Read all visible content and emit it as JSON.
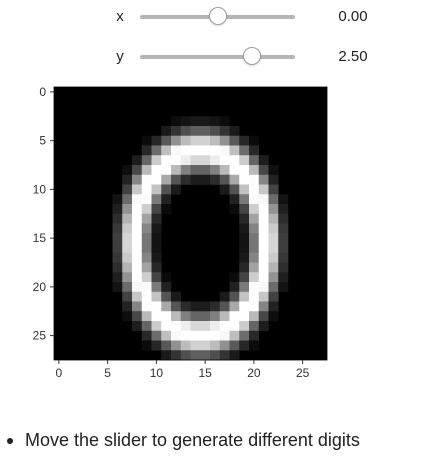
{
  "sliders": [
    {
      "label": "x",
      "value": 0.0,
      "display": "0.00",
      "min": -5,
      "max": 5
    },
    {
      "label": "y",
      "value": 2.5,
      "display": "2.50",
      "min": -5,
      "max": 5
    }
  ],
  "chart_data": {
    "type": "heatmap",
    "colormap": "gray",
    "image_size": [
      28,
      28
    ],
    "title": "",
    "xlabel": "",
    "ylabel": "",
    "xlim": [
      -0.5,
      27.5
    ],
    "ylim": [
      27.5,
      -0.5
    ],
    "x_ticks": [
      0,
      5,
      10,
      15,
      20,
      25
    ],
    "y_ticks": [
      0,
      5,
      10,
      15,
      20,
      25
    ],
    "x_tick_labels": [
      "0",
      "5",
      "10",
      "15",
      "20",
      "25"
    ],
    "y_tick_labels": [
      "0",
      "5",
      "10",
      "15",
      "20",
      "25"
    ],
    "generated_digit": "0",
    "ring": {
      "center_row": 15.5,
      "center_col": 14.5,
      "radius_rows": 9.5,
      "radius_cols": 6.8,
      "thickness": 1.4
    }
  },
  "notes": [
    "Move the slider to generate different digits"
  ]
}
